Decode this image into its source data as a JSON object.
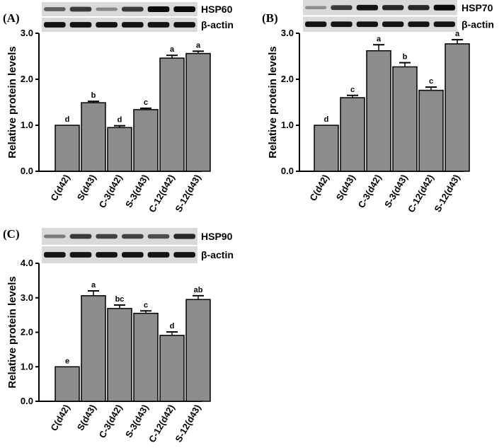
{
  "chart_data": [
    {
      "panel": "(A)",
      "type": "bar",
      "blots": [
        "HSP60",
        "β-actin"
      ],
      "blot_intensity": [
        [
          0.55,
          0.75,
          0.35,
          0.75,
          1.0,
          1.0
        ],
        [
          0.95,
          0.95,
          0.95,
          0.95,
          0.95,
          0.95
        ]
      ],
      "ylabel": "Relative protein levels",
      "ylim": [
        0,
        3.0
      ],
      "yticks": [
        "0.0",
        "1.0",
        "2.0",
        "3.0"
      ],
      "categories": [
        "C(d42)",
        "S(d43)",
        "C-3(d42)",
        "S-3(d43)",
        "C-12(d42)",
        "S-12(d43)"
      ],
      "values": [
        1.0,
        1.49,
        0.95,
        1.34,
        2.46,
        2.56
      ],
      "errors": [
        0.0,
        0.03,
        0.04,
        0.03,
        0.06,
        0.05
      ],
      "letters": [
        "d",
        "b",
        "d",
        "c",
        "a",
        "a"
      ]
    },
    {
      "panel": "(B)",
      "type": "bar",
      "blots": [
        "HSP70",
        "β-actin"
      ],
      "blot_intensity": [
        [
          0.3,
          0.75,
          0.95,
          0.85,
          0.85,
          1.0
        ],
        [
          0.95,
          0.95,
          0.95,
          0.95,
          0.95,
          0.95
        ]
      ],
      "ylabel": "Relative protein levels",
      "ylim": [
        0,
        3.0
      ],
      "yticks": [
        "0.0",
        "1.0",
        "2.0",
        "3.0"
      ],
      "categories": [
        "C(d42)",
        "S(d43)",
        "C-3(d42)",
        "S-3(d43)",
        "C-12(d42)",
        "S-12(d43)"
      ],
      "values": [
        1.0,
        1.6,
        2.62,
        2.27,
        1.76,
        2.77
      ],
      "errors": [
        0.0,
        0.05,
        0.13,
        0.09,
        0.07,
        0.09
      ],
      "letters": [
        "d",
        "c",
        "a",
        "b",
        "c",
        "a"
      ]
    },
    {
      "panel": "(C)",
      "type": "bar",
      "blots": [
        "HSP90",
        "β-actin"
      ],
      "blot_intensity": [
        [
          0.4,
          0.75,
          0.7,
          0.7,
          0.65,
          0.85
        ],
        [
          0.95,
          0.95,
          0.95,
          0.95,
          0.95,
          0.95
        ]
      ],
      "ylabel": "Relative protein levels",
      "ylim": [
        0,
        4.0
      ],
      "yticks": [
        "0.0",
        "1.0",
        "2.0",
        "3.0",
        "4.0"
      ],
      "categories": [
        "C(d42)",
        "S(d43)",
        "C-3(d42)",
        "S-3(d43)",
        "C-12(d42)",
        "S-12(d43)"
      ],
      "values": [
        1.0,
        3.06,
        2.69,
        2.55,
        1.91,
        2.95
      ],
      "errors": [
        0.0,
        0.14,
        0.1,
        0.07,
        0.1,
        0.11
      ],
      "letters": [
        "e",
        "a",
        "bc",
        "c",
        "d",
        "ab"
      ]
    }
  ]
}
